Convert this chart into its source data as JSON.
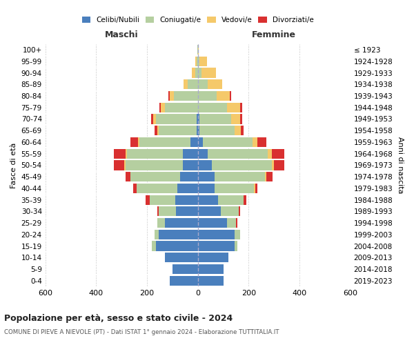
{
  "age_groups": [
    "0-4",
    "5-9",
    "10-14",
    "15-19",
    "20-24",
    "25-29",
    "30-34",
    "35-39",
    "40-44",
    "45-49",
    "50-54",
    "55-59",
    "60-64",
    "65-69",
    "70-74",
    "75-79",
    "80-84",
    "85-89",
    "90-94",
    "95-99",
    "100+"
  ],
  "birth_years": [
    "2019-2023",
    "2014-2018",
    "2009-2013",
    "2004-2008",
    "1999-2003",
    "1994-1998",
    "1989-1993",
    "1984-1988",
    "1979-1983",
    "1974-1978",
    "1969-1973",
    "1964-1968",
    "1959-1963",
    "1954-1958",
    "1949-1953",
    "1944-1948",
    "1939-1943",
    "1934-1938",
    "1929-1933",
    "1924-1928",
    "≤ 1923"
  ],
  "male": {
    "celibi": [
      110,
      100,
      130,
      165,
      155,
      130,
      85,
      90,
      80,
      70,
      60,
      60,
      30,
      5,
      5,
      0,
      0,
      0,
      0,
      0,
      0
    ],
    "coniugati": [
      0,
      0,
      0,
      15,
      15,
      30,
      70,
      100,
      160,
      195,
      225,
      220,
      200,
      150,
      160,
      130,
      95,
      40,
      10,
      5,
      2
    ],
    "vedovi": [
      0,
      0,
      0,
      0,
      0,
      0,
      0,
      0,
      0,
      0,
      5,
      5,
      5,
      5,
      10,
      15,
      15,
      15,
      15,
      5,
      0
    ],
    "divorziati": [
      0,
      0,
      0,
      0,
      0,
      0,
      5,
      15,
      15,
      20,
      40,
      45,
      30,
      10,
      10,
      5,
      5,
      0,
      0,
      0,
      0
    ]
  },
  "female": {
    "nubili": [
      100,
      100,
      120,
      145,
      145,
      115,
      90,
      80,
      65,
      65,
      55,
      40,
      20,
      5,
      5,
      0,
      0,
      0,
      0,
      0,
      0
    ],
    "coniugate": [
      0,
      0,
      0,
      10,
      20,
      35,
      70,
      100,
      155,
      200,
      235,
      235,
      195,
      140,
      125,
      115,
      75,
      40,
      15,
      5,
      2
    ],
    "vedove": [
      0,
      0,
      0,
      0,
      0,
      0,
      0,
      0,
      5,
      5,
      10,
      15,
      20,
      25,
      35,
      50,
      50,
      55,
      55,
      30,
      2
    ],
    "divorziate": [
      0,
      0,
      0,
      0,
      0,
      5,
      5,
      10,
      10,
      25,
      40,
      50,
      35,
      10,
      10,
      10,
      5,
      0,
      0,
      0,
      0
    ]
  },
  "colors": {
    "celibi": "#4a7fbd",
    "coniugati": "#b5cfa0",
    "vedovi": "#f5c96a",
    "divorziati": "#d93030"
  },
  "xlim": 600,
  "title": "Popolazione per età, sesso e stato civile - 2024",
  "subtitle": "COMUNE DI PIEVE A NIEVOLE (PT) - Dati ISTAT 1° gennaio 2024 - Elaborazione TUTTITALIA.IT",
  "ylabel_left": "Fasce di età",
  "ylabel_right": "Anni di nascita",
  "xlabel_left": "Maschi",
  "xlabel_right": "Femmine",
  "legend_labels": [
    "Celibi/Nubili",
    "Coniugati/e",
    "Vedovi/e",
    "Divorziati/e"
  ],
  "background_color": "#ffffff",
  "grid_color": "#cccccc"
}
